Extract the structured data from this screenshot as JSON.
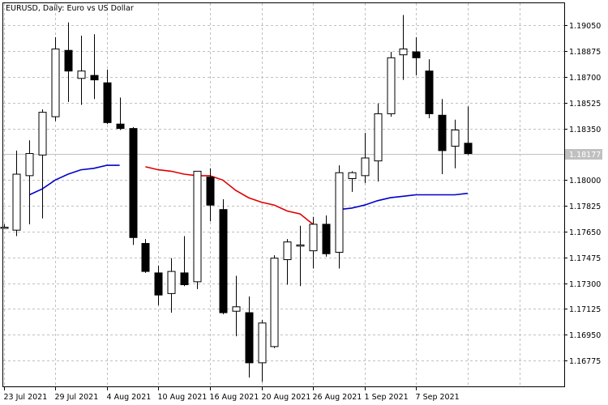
{
  "chart_data": {
    "type": "candlestick",
    "title": "EURUSD, Daily:  Euro vs US Dollar",
    "ylim": [
      1.166,
      1.192
    ],
    "yticks": [
      "1.19050",
      "1.18875",
      "1.18700",
      "1.18525",
      "1.18350",
      "1.18177",
      "1.18000",
      "1.17825",
      "1.17650",
      "1.17475",
      "1.17300",
      "1.17125",
      "1.16950",
      "1.16775"
    ],
    "ytick_values": [
      1.1905,
      1.18875,
      1.187,
      1.18525,
      1.1835,
      1.18,
      1.17825,
      1.1765,
      1.17475,
      1.173,
      1.17125,
      1.1695,
      1.16775
    ],
    "current_price": 1.18177,
    "current_price_label": "1.18177",
    "xticks": [
      {
        "label": "23 Jul 2021",
        "index": 0
      },
      {
        "label": "29 Jul 2021",
        "index": 4
      },
      {
        "label": "4 Aug 2021",
        "index": 8
      },
      {
        "label": "10 Aug 2021",
        "index": 12
      },
      {
        "label": "16 Aug 2021",
        "index": 16
      },
      {
        "label": "20 Aug 2021",
        "index": 20
      },
      {
        "label": "26 Aug 2021",
        "index": 24
      },
      {
        "label": "1 Sep 2021",
        "index": 28
      },
      {
        "label": "7 Sep 2021",
        "index": 32
      }
    ],
    "candles": [
      {
        "o": 1.1768,
        "h": 1.177,
        "l": 1.1767,
        "c": 1.1768
      },
      {
        "o": 1.1766,
        "h": 1.182,
        "l": 1.1762,
        "c": 1.1804
      },
      {
        "o": 1.1803,
        "h": 1.1827,
        "l": 1.177,
        "c": 1.1818
      },
      {
        "o": 1.1817,
        "h": 1.1848,
        "l": 1.1774,
        "c": 1.1846
      },
      {
        "o": 1.1843,
        "h": 1.1897,
        "l": 1.184,
        "c": 1.1889
      },
      {
        "o": 1.1888,
        "h": 1.1907,
        "l": 1.1853,
        "c": 1.1874
      },
      {
        "o": 1.1869,
        "h": 1.1898,
        "l": 1.1851,
        "c": 1.1874
      },
      {
        "o": 1.1871,
        "h": 1.1899,
        "l": 1.1855,
        "c": 1.1868
      },
      {
        "o": 1.1866,
        "h": 1.1875,
        "l": 1.1838,
        "c": 1.1839
      },
      {
        "o": 1.1838,
        "h": 1.1856,
        "l": 1.1834,
        "c": 1.1835
      },
      {
        "o": 1.1835,
        "h": 1.1836,
        "l": 1.1756,
        "c": 1.1761
      },
      {
        "o": 1.1757,
        "h": 1.176,
        "l": 1.1737,
        "c": 1.1738
      },
      {
        "o": 1.1737,
        "h": 1.1742,
        "l": 1.1715,
        "c": 1.1722
      },
      {
        "o": 1.1723,
        "h": 1.1747,
        "l": 1.171,
        "c": 1.1738
      },
      {
        "o": 1.1737,
        "h": 1.1762,
        "l": 1.1728,
        "c": 1.1729
      },
      {
        "o": 1.1731,
        "h": 1.1805,
        "l": 1.1726,
        "c": 1.1806
      },
      {
        "o": 1.1802,
        "h": 1.1808,
        "l": 1.1772,
        "c": 1.1783
      },
      {
        "o": 1.178,
        "h": 1.1787,
        "l": 1.1709,
        "c": 1.171
      },
      {
        "o": 1.1711,
        "h": 1.1735,
        "l": 1.1694,
        "c": 1.1714
      },
      {
        "o": 1.171,
        "h": 1.1721,
        "l": 1.1666,
        "c": 1.1676
      },
      {
        "o": 1.1676,
        "h": 1.1705,
        "l": 1.1663,
        "c": 1.1703
      },
      {
        "o": 1.1687,
        "h": 1.1749,
        "l": 1.1686,
        "c": 1.1747
      },
      {
        "o": 1.1746,
        "h": 1.176,
        "l": 1.1729,
        "c": 1.1758
      },
      {
        "o": 1.1756,
        "h": 1.1769,
        "l": 1.1728,
        "c": 1.1756
      },
      {
        "o": 1.1752,
        "h": 1.1775,
        "l": 1.174,
        "c": 1.177
      },
      {
        "o": 1.177,
        "h": 1.1776,
        "l": 1.1748,
        "c": 1.175
      },
      {
        "o": 1.1751,
        "h": 1.181,
        "l": 1.174,
        "c": 1.1805
      },
      {
        "o": 1.1801,
        "h": 1.1806,
        "l": 1.1792,
        "c": 1.1805
      },
      {
        "o": 1.1803,
        "h": 1.1832,
        "l": 1.1798,
        "c": 1.1815
      },
      {
        "o": 1.1813,
        "h": 1.1852,
        "l": 1.1799,
        "c": 1.1845
      },
      {
        "o": 1.1845,
        "h": 1.1887,
        "l": 1.1843,
        "c": 1.1883
      },
      {
        "o": 1.1885,
        "h": 1.1912,
        "l": 1.1868,
        "c": 1.1889
      },
      {
        "o": 1.1887,
        "h": 1.1897,
        "l": 1.1871,
        "c": 1.1883
      },
      {
        "o": 1.1874,
        "h": 1.1882,
        "l": 1.1842,
        "c": 1.1845
      },
      {
        "o": 1.1844,
        "h": 1.1855,
        "l": 1.1804,
        "c": 1.182
      },
      {
        "o": 1.1823,
        "h": 1.1841,
        "l": 1.1808,
        "c": 1.1834
      },
      {
        "o": 1.1825,
        "h": 1.185,
        "l": 1.1817,
        "c": 1.1818
      }
    ],
    "series": [
      {
        "color": "#0000cc",
        "points": [
          [
            2,
            1.179
          ],
          [
            3,
            1.1794
          ],
          [
            4,
            1.18
          ],
          [
            5,
            1.1804
          ],
          [
            6,
            1.1807
          ],
          [
            7,
            1.1808
          ],
          [
            8,
            1.181
          ],
          [
            9,
            1.181
          ]
        ]
      },
      {
        "color": "#e00000",
        "points": [
          [
            11,
            1.1809
          ],
          [
            12,
            1.1807
          ],
          [
            13,
            1.1806
          ],
          [
            14,
            1.1804
          ],
          [
            15,
            1.1803
          ],
          [
            16,
            1.1803
          ],
          [
            17,
            1.18
          ],
          [
            18,
            1.1793
          ],
          [
            19,
            1.1788
          ],
          [
            20,
            1.1785
          ],
          [
            21,
            1.1783
          ],
          [
            22,
            1.1779
          ],
          [
            23,
            1.1777
          ],
          [
            24,
            1.177
          ]
        ]
      },
      {
        "color": "#0000cc",
        "points": [
          [
            26,
            1.178
          ],
          [
            27,
            1.1781
          ],
          [
            28,
            1.1783
          ],
          [
            29,
            1.1786
          ],
          [
            30,
            1.1788
          ],
          [
            31,
            1.1789
          ],
          [
            32,
            1.179
          ],
          [
            33,
            1.179
          ],
          [
            34,
            1.179
          ],
          [
            35,
            1.179
          ],
          [
            36,
            1.1791
          ]
        ]
      }
    ],
    "colors": {
      "background": "#ffffff",
      "grid": "#c0c0c0",
      "candle_outline": "#000000",
      "bull_fill": "#ffffff",
      "bear_fill": "#000000",
      "price_tag": "#c0c0c0"
    }
  }
}
